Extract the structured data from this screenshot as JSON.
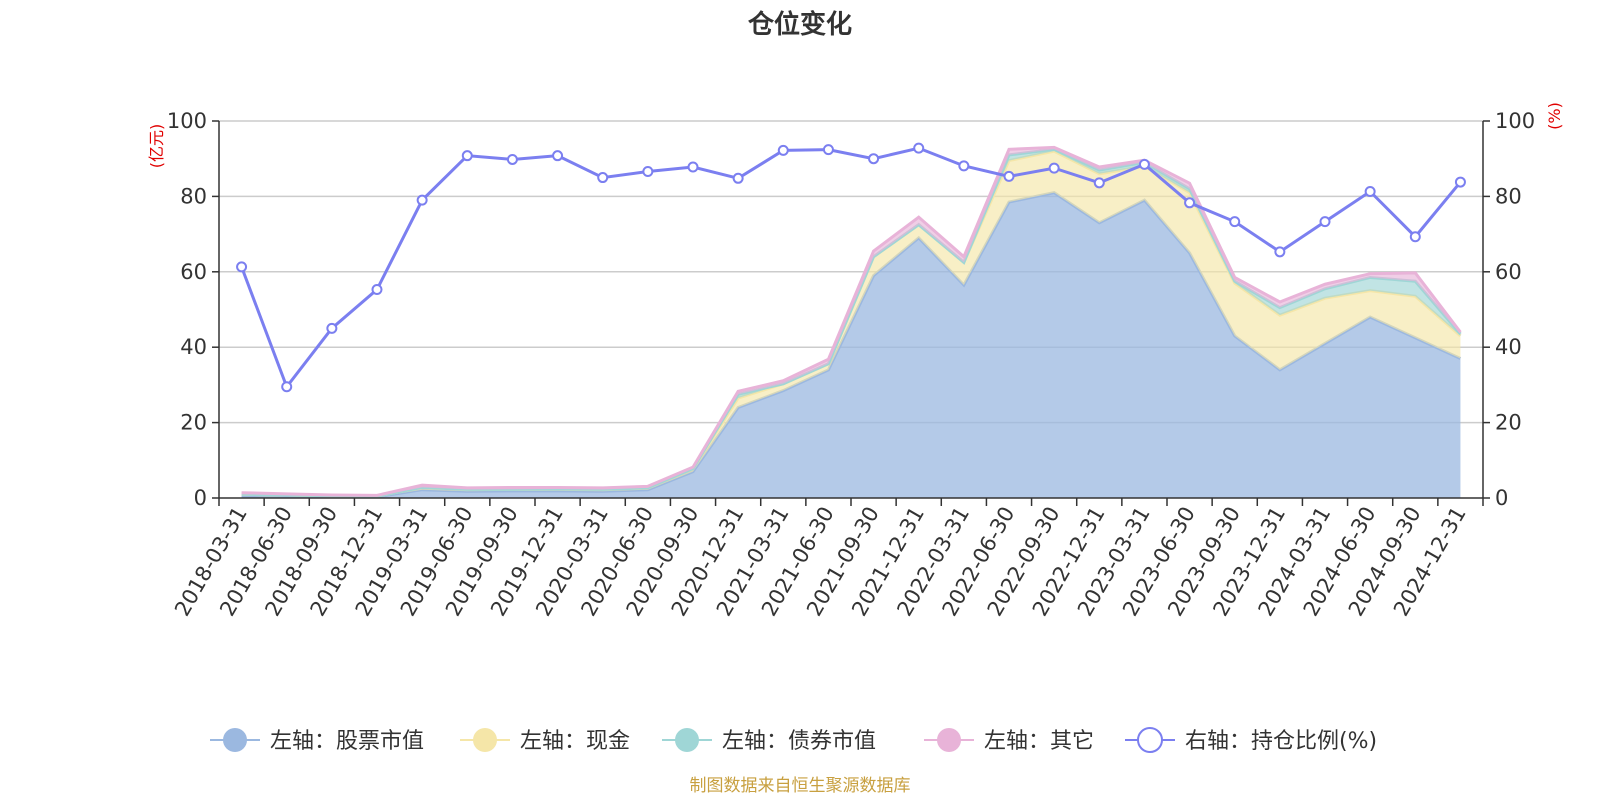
{
  "chart_data": {
    "type": "area",
    "title": "仓位变化",
    "left_axis": {
      "unit": "(亿元)",
      "ylim": [
        0,
        100
      ],
      "ticks": [
        0,
        20,
        40,
        60,
        80,
        100
      ]
    },
    "right_axis": {
      "unit": "(%)",
      "ylim": [
        0,
        100
      ],
      "ticks": [
        0,
        20,
        40,
        60,
        80,
        100
      ]
    },
    "categories": [
      "2018-03-31",
      "2018-06-30",
      "2018-09-30",
      "2018-12-31",
      "2019-03-31",
      "2019-06-30",
      "2019-09-30",
      "2019-12-31",
      "2020-03-31",
      "2020-06-30",
      "2020-09-30",
      "2020-12-31",
      "2021-03-31",
      "2021-06-30",
      "2021-09-30",
      "2021-12-31",
      "2022-03-31",
      "2022-06-30",
      "2022-09-30",
      "2022-12-31",
      "2023-03-31",
      "2023-06-30",
      "2023-09-30",
      "2023-12-31",
      "2024-03-31",
      "2024-06-30",
      "2024-09-30",
      "2024-12-31"
    ],
    "grid": true,
    "legend_position": "bottom",
    "series": [
      {
        "name": "左轴：股票市值",
        "axis": "left",
        "stacked": true,
        "color": "#9bb8e0",
        "values": [
          0.6,
          0.4,
          0.3,
          0.3,
          2.2,
          1.8,
          1.9,
          1.9,
          1.8,
          2.2,
          7.0,
          24.0,
          28.5,
          34.0,
          59.0,
          69.0,
          56.5,
          78.5,
          81.0,
          73.0,
          79.0,
          65.0,
          43.0,
          34.0,
          41.0,
          48.0,
          42.5,
          37.0
        ]
      },
      {
        "name": "左轴：现金",
        "axis": "left",
        "stacked": true,
        "color": "#f5e6a8",
        "values": [
          0.4,
          0.4,
          0.3,
          0.2,
          0.6,
          0.5,
          0.4,
          0.5,
          0.5,
          0.5,
          0.8,
          2.5,
          1.8,
          1.6,
          5.0,
          3.5,
          6.0,
          11.0,
          11.0,
          13.0,
          9.0,
          16.0,
          14.0,
          14.5,
          12.0,
          7.0,
          11.0,
          6.0
        ]
      },
      {
        "name": "左轴：债券市值",
        "axis": "left",
        "stacked": true,
        "color": "#9fd6d6",
        "values": [
          0,
          0,
          0,
          0,
          0,
          0,
          0,
          0,
          0,
          0,
          0,
          1.0,
          0,
          0,
          0,
          0,
          0,
          1.5,
          0.5,
          1.0,
          1.0,
          1.0,
          0.5,
          2.0,
          2.5,
          3.5,
          4.0,
          0.5
        ]
      },
      {
        "name": "左轴：其它",
        "axis": "left",
        "stacked": true,
        "color": "#e8b3d8",
        "values": [
          0.4,
          0.3,
          0.2,
          0.2,
          0.6,
          0.4,
          0.5,
          0.4,
          0.4,
          0.4,
          0.4,
          0.8,
          0.8,
          1.2,
          1.5,
          2.0,
          1.5,
          1.5,
          0.5,
          0.8,
          0.6,
          1.5,
          1.0,
          1.5,
          1.2,
          1.0,
          2.2,
          0.5
        ]
      },
      {
        "name": "右轴：持仓比例(%)",
        "axis": "right",
        "type": "line",
        "color": "#7b7ff0",
        "values": [
          61.3,
          29.5,
          45.0,
          55.3,
          79.0,
          90.8,
          89.8,
          90.8,
          85.0,
          86.6,
          87.8,
          84.8,
          92.2,
          92.4,
          90.0,
          92.8,
          88.1,
          85.3,
          87.5,
          83.6,
          88.5,
          78.3,
          73.3,
          65.3,
          73.3,
          81.3,
          69.3,
          83.8
        ]
      }
    ]
  },
  "footer": {
    "source": "制图数据来自恒生聚源数据库"
  }
}
